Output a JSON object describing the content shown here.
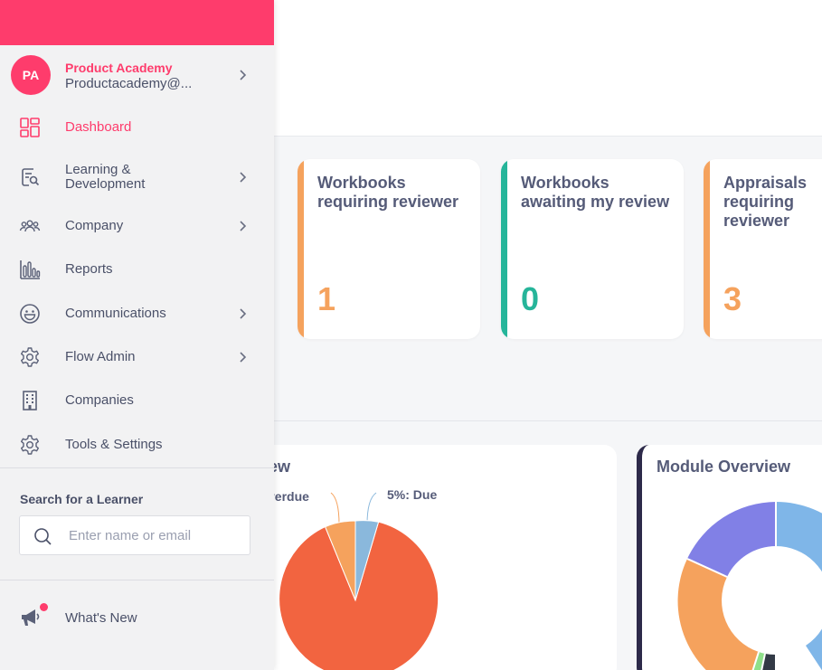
{
  "colors": {
    "brand": "#fe3c6c",
    "orange": "#f5a25d",
    "teal": "#26b59a",
    "pie_red": "#f26440",
    "pie_orange": "#f5a25d",
    "pie_blue": "#8ab8dc"
  },
  "profile": {
    "initials": "PA",
    "name": "Product Academy",
    "email": "Productacademy@..."
  },
  "nav": {
    "items": [
      {
        "label": "Dashboard",
        "icon": "dashboard-icon",
        "active": true,
        "chevron": false
      },
      {
        "label": "Learning &\nDevelopment",
        "icon": "learning-icon",
        "active": false,
        "chevron": true
      },
      {
        "label": "Company",
        "icon": "people-icon",
        "active": false,
        "chevron": true
      },
      {
        "label": "Reports",
        "icon": "bar-chart-icon",
        "active": false,
        "chevron": false
      },
      {
        "label": "Communications",
        "icon": "smiley-icon",
        "active": false,
        "chevron": true
      },
      {
        "label": "Flow Admin",
        "icon": "gear-icon",
        "active": false,
        "chevron": true
      },
      {
        "label": "Companies",
        "icon": "building-icon",
        "active": false,
        "chevron": false
      },
      {
        "label": "Tools & Settings",
        "icon": "gear-icon",
        "active": false,
        "chevron": false
      }
    ]
  },
  "search": {
    "heading": "Search for a Learner",
    "placeholder": "Enter name or email"
  },
  "whats_new": {
    "label": "What's New"
  },
  "stat_cards": [
    {
      "title": "Workbooks requiring reviewer",
      "value": "1",
      "accent": "#f5a25d"
    },
    {
      "title": "Workbooks awaiting my review",
      "value": "0",
      "accent": "#26b59a"
    },
    {
      "title": "Appraisals requiring reviewer",
      "value": "3",
      "accent": "#f5a25d"
    }
  ],
  "charts": {
    "left_title": "ew",
    "right_title": "Module Overview",
    "pie_labels": {
      "overdue": "verdue",
      "due": "5%: Due"
    }
  }
}
